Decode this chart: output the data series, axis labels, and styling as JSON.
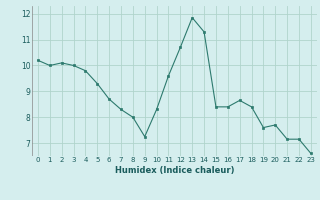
{
  "x": [
    0,
    1,
    2,
    3,
    4,
    5,
    6,
    7,
    8,
    9,
    10,
    11,
    12,
    13,
    14,
    15,
    16,
    17,
    18,
    19,
    20,
    21,
    22,
    23
  ],
  "y": [
    10.2,
    10.0,
    10.1,
    10.0,
    9.8,
    9.3,
    8.7,
    8.3,
    8.0,
    7.25,
    8.3,
    9.6,
    10.7,
    11.85,
    11.3,
    8.4,
    8.4,
    8.65,
    8.4,
    7.6,
    7.7,
    7.15,
    7.15,
    6.6
  ],
  "xlabel": "Humidex (Indice chaleur)",
  "ylim": [
    6.5,
    12.3
  ],
  "xlim": [
    -0.5,
    23.5
  ],
  "yticks": [
    7,
    8,
    9,
    10,
    11,
    12
  ],
  "xticks": [
    0,
    1,
    2,
    3,
    4,
    5,
    6,
    7,
    8,
    9,
    10,
    11,
    12,
    13,
    14,
    15,
    16,
    17,
    18,
    19,
    20,
    21,
    22,
    23
  ],
  "line_color": "#2d7a6e",
  "marker_color": "#2d7a6e",
  "bg_color": "#d5eeee",
  "grid_color": "#b0d4cc",
  "xlabel_fontsize": 6.0,
  "tick_fontsize": 5.0
}
